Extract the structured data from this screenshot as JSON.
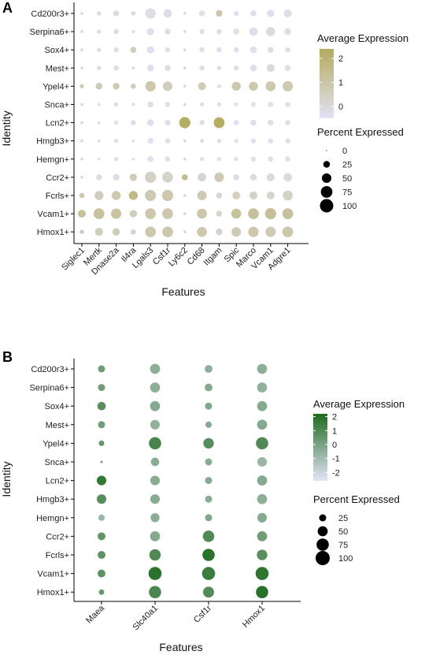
{
  "chart_data": [
    {
      "type": "dotplot",
      "panel": "A",
      "xlabel": "Features",
      "ylabel": "Identity",
      "features": [
        "Siglec1",
        "Mertk",
        "Dnase2a",
        "Il4ra",
        "Lgals3",
        "Csf1r",
        "Ly6c2",
        "Cd68",
        "Itgam",
        "Spic",
        "Marco",
        "Vcam1",
        "Adgre1"
      ],
      "identities": [
        "Cd200r3+",
        "Serpina6+",
        "Sox4+",
        "Mest+",
        "Ypel4+",
        "Snca+",
        "Lcn2+",
        "Hmgb3+",
        "Hemgn+",
        "Ccr2+",
        "Fcrls+",
        "Vcam1+",
        "Hmox1+"
      ],
      "avg_expression": [
        [
          0,
          0,
          -0.1,
          0,
          -0.2,
          -0.2,
          0,
          -0.3,
          0.9,
          -0.3,
          -0.3,
          -0.3,
          -0.2
        ],
        [
          0,
          -0.2,
          -0.2,
          0,
          -0.3,
          -0.2,
          0,
          -0.3,
          -0.2,
          -0.3,
          -0.3,
          -0.1,
          -0.2
        ],
        [
          0,
          -0.2,
          -0.3,
          0.6,
          -0.4,
          -0.3,
          0,
          -0.3,
          -0.3,
          -0.3,
          -0.3,
          -0.2,
          -0.3
        ],
        [
          0,
          -0.2,
          -0.2,
          0,
          -0.3,
          -0.2,
          0,
          -0.3,
          -0.2,
          -0.3,
          -0.3,
          -0.1,
          -0.3
        ],
        [
          0.8,
          0.8,
          0.8,
          0.6,
          0.9,
          0.6,
          0,
          0.7,
          -0.3,
          0.9,
          0.9,
          0.9,
          0.8
        ],
        [
          0,
          -0.3,
          -0.2,
          0,
          -0.3,
          -0.3,
          0,
          -0.3,
          -0.3,
          -0.4,
          -0.4,
          -0.3,
          -0.3
        ],
        [
          0,
          -0.3,
          -0.3,
          -0.2,
          -0.3,
          -0.3,
          2.3,
          -0.3,
          2.3,
          -0.3,
          -0.3,
          -0.3,
          -0.3
        ],
        [
          0,
          -0.3,
          -0.3,
          -0.3,
          -0.4,
          -0.3,
          0,
          -0.3,
          -0.3,
          -0.4,
          -0.4,
          -0.3,
          -0.3
        ],
        [
          0,
          -0.3,
          -0.3,
          -0.3,
          -0.4,
          -0.3,
          0,
          -0.3,
          -0.3,
          -0.4,
          -0.4,
          -0.3,
          -0.3
        ],
        [
          0,
          -0.2,
          -0.2,
          0.7,
          0.4,
          0.3,
          1.5,
          0.2,
          0.8,
          -0.2,
          -0.1,
          -0.1,
          0
        ],
        [
          0.9,
          0.6,
          0.8,
          1.6,
          0.8,
          0.9,
          0,
          0.8,
          0.2,
          0.5,
          0.4,
          0.2,
          0.4
        ],
        [
          1.2,
          1.2,
          1.1,
          0.6,
          0.9,
          0.9,
          0,
          1.0,
          0.3,
          1.2,
          1.2,
          1.3,
          1.2
        ],
        [
          0.7,
          0.6,
          0.7,
          0.3,
          0.9,
          0.9,
          0,
          0.9,
          0.3,
          0.8,
          0.9,
          0.7,
          0.9
        ]
      ],
      "pct_expressed": [
        [
          5,
          10,
          20,
          10,
          60,
          40,
          5,
          20,
          25,
          15,
          20,
          30,
          35
        ],
        [
          5,
          10,
          15,
          5,
          30,
          20,
          5,
          15,
          15,
          20,
          40,
          45,
          25
        ],
        [
          5,
          10,
          15,
          20,
          30,
          15,
          5,
          15,
          15,
          15,
          25,
          20,
          15
        ],
        [
          5,
          10,
          15,
          5,
          25,
          20,
          5,
          15,
          10,
          15,
          25,
          35,
          20
        ],
        [
          10,
          25,
          25,
          15,
          60,
          50,
          5,
          35,
          10,
          45,
          45,
          55,
          60
        ],
        [
          5,
          5,
          10,
          5,
          20,
          15,
          5,
          10,
          10,
          10,
          15,
          15,
          15
        ],
        [
          5,
          5,
          10,
          15,
          25,
          20,
          70,
          15,
          65,
          15,
          20,
          20,
          15
        ],
        [
          5,
          5,
          10,
          5,
          20,
          15,
          5,
          10,
          10,
          10,
          15,
          15,
          15
        ],
        [
          5,
          5,
          10,
          5,
          20,
          15,
          5,
          10,
          10,
          10,
          15,
          15,
          15
        ],
        [
          5,
          20,
          25,
          30,
          70,
          65,
          20,
          40,
          50,
          20,
          25,
          35,
          40
        ],
        [
          15,
          45,
          45,
          45,
          70,
          70,
          5,
          50,
          20,
          35,
          35,
          35,
          55
        ],
        [
          35,
          65,
          60,
          30,
          65,
          65,
          5,
          55,
          20,
          55,
          65,
          70,
          65
        ],
        [
          10,
          35,
          30,
          15,
          65,
          65,
          5,
          55,
          25,
          50,
          60,
          60,
          65
        ]
      ],
      "color_legend": {
        "title": "Average Expression",
        "ticks": [
          2,
          1,
          0
        ],
        "range": [
          -0.5,
          2.4
        ],
        "low_color": "#e3e2f5",
        "high_color": "#b3ab5f"
      },
      "size_legend": {
        "title": "Percent Expressed",
        "ticks": [
          0,
          25,
          50,
          75,
          100
        ]
      }
    },
    {
      "type": "dotplot",
      "panel": "B",
      "xlabel": "Features",
      "ylabel": "Identity",
      "features": [
        "Maea",
        "Slc40a1",
        "Csf1r",
        "Hmox1"
      ],
      "identities": [
        "Cd200r3+",
        "Serpina6+",
        "Sox4+",
        "Mest+",
        "Ypel4+",
        "Snca+",
        "Lcn2+",
        "Hmgb3+",
        "Hemgn+",
        "Ccr2+",
        "Fcrls+",
        "Vcam1+",
        "Hmox1+"
      ],
      "avg_expression": [
        [
          0.2,
          -0.5,
          -0.5,
          -0.5
        ],
        [
          0.2,
          -0.5,
          -0.3,
          -0.6
        ],
        [
          0.8,
          -0.3,
          -0.2,
          -0.3
        ],
        [
          0.2,
          -0.6,
          -0.3,
          -0.3
        ],
        [
          0.5,
          1.2,
          0.8,
          1.0
        ],
        [
          0,
          -0.4,
          -0.4,
          -0.8
        ],
        [
          1.7,
          -0.4,
          -0.3,
          -0.3
        ],
        [
          0.8,
          -0.4,
          -0.4,
          -0.5
        ],
        [
          -0.8,
          -0.4,
          -0.2,
          -0.3
        ],
        [
          0.6,
          -0.3,
          1.0,
          0.2
        ],
        [
          0.7,
          1.0,
          1.9,
          0.8
        ],
        [
          0.7,
          1.9,
          1.5,
          1.8
        ],
        [
          0.4,
          1.1,
          0.9,
          2.0
        ]
      ],
      "pct_expressed": [
        [
          25,
          50,
          30,
          50
        ],
        [
          25,
          50,
          30,
          50
        ],
        [
          35,
          50,
          25,
          50
        ],
        [
          25,
          45,
          20,
          50
        ],
        [
          15,
          75,
          55,
          75
        ],
        [
          3,
          35,
          25,
          45
        ],
        [
          45,
          45,
          25,
          50
        ],
        [
          45,
          45,
          25,
          50
        ],
        [
          20,
          40,
          25,
          45
        ],
        [
          30,
          50,
          65,
          50
        ],
        [
          30,
          65,
          75,
          55
        ],
        [
          30,
          85,
          85,
          85
        ],
        [
          15,
          75,
          60,
          75
        ]
      ],
      "color_legend": {
        "title": "Average Expression",
        "ticks": [
          2,
          1,
          0,
          -1,
          -2
        ],
        "range": [
          -2.6,
          2.2
        ],
        "low_color": "#e4e3f6",
        "high_color": "#1e6b1e"
      },
      "size_legend": {
        "title": "Percent Expressed",
        "ticks": [
          25,
          50,
          75,
          100
        ]
      }
    }
  ]
}
